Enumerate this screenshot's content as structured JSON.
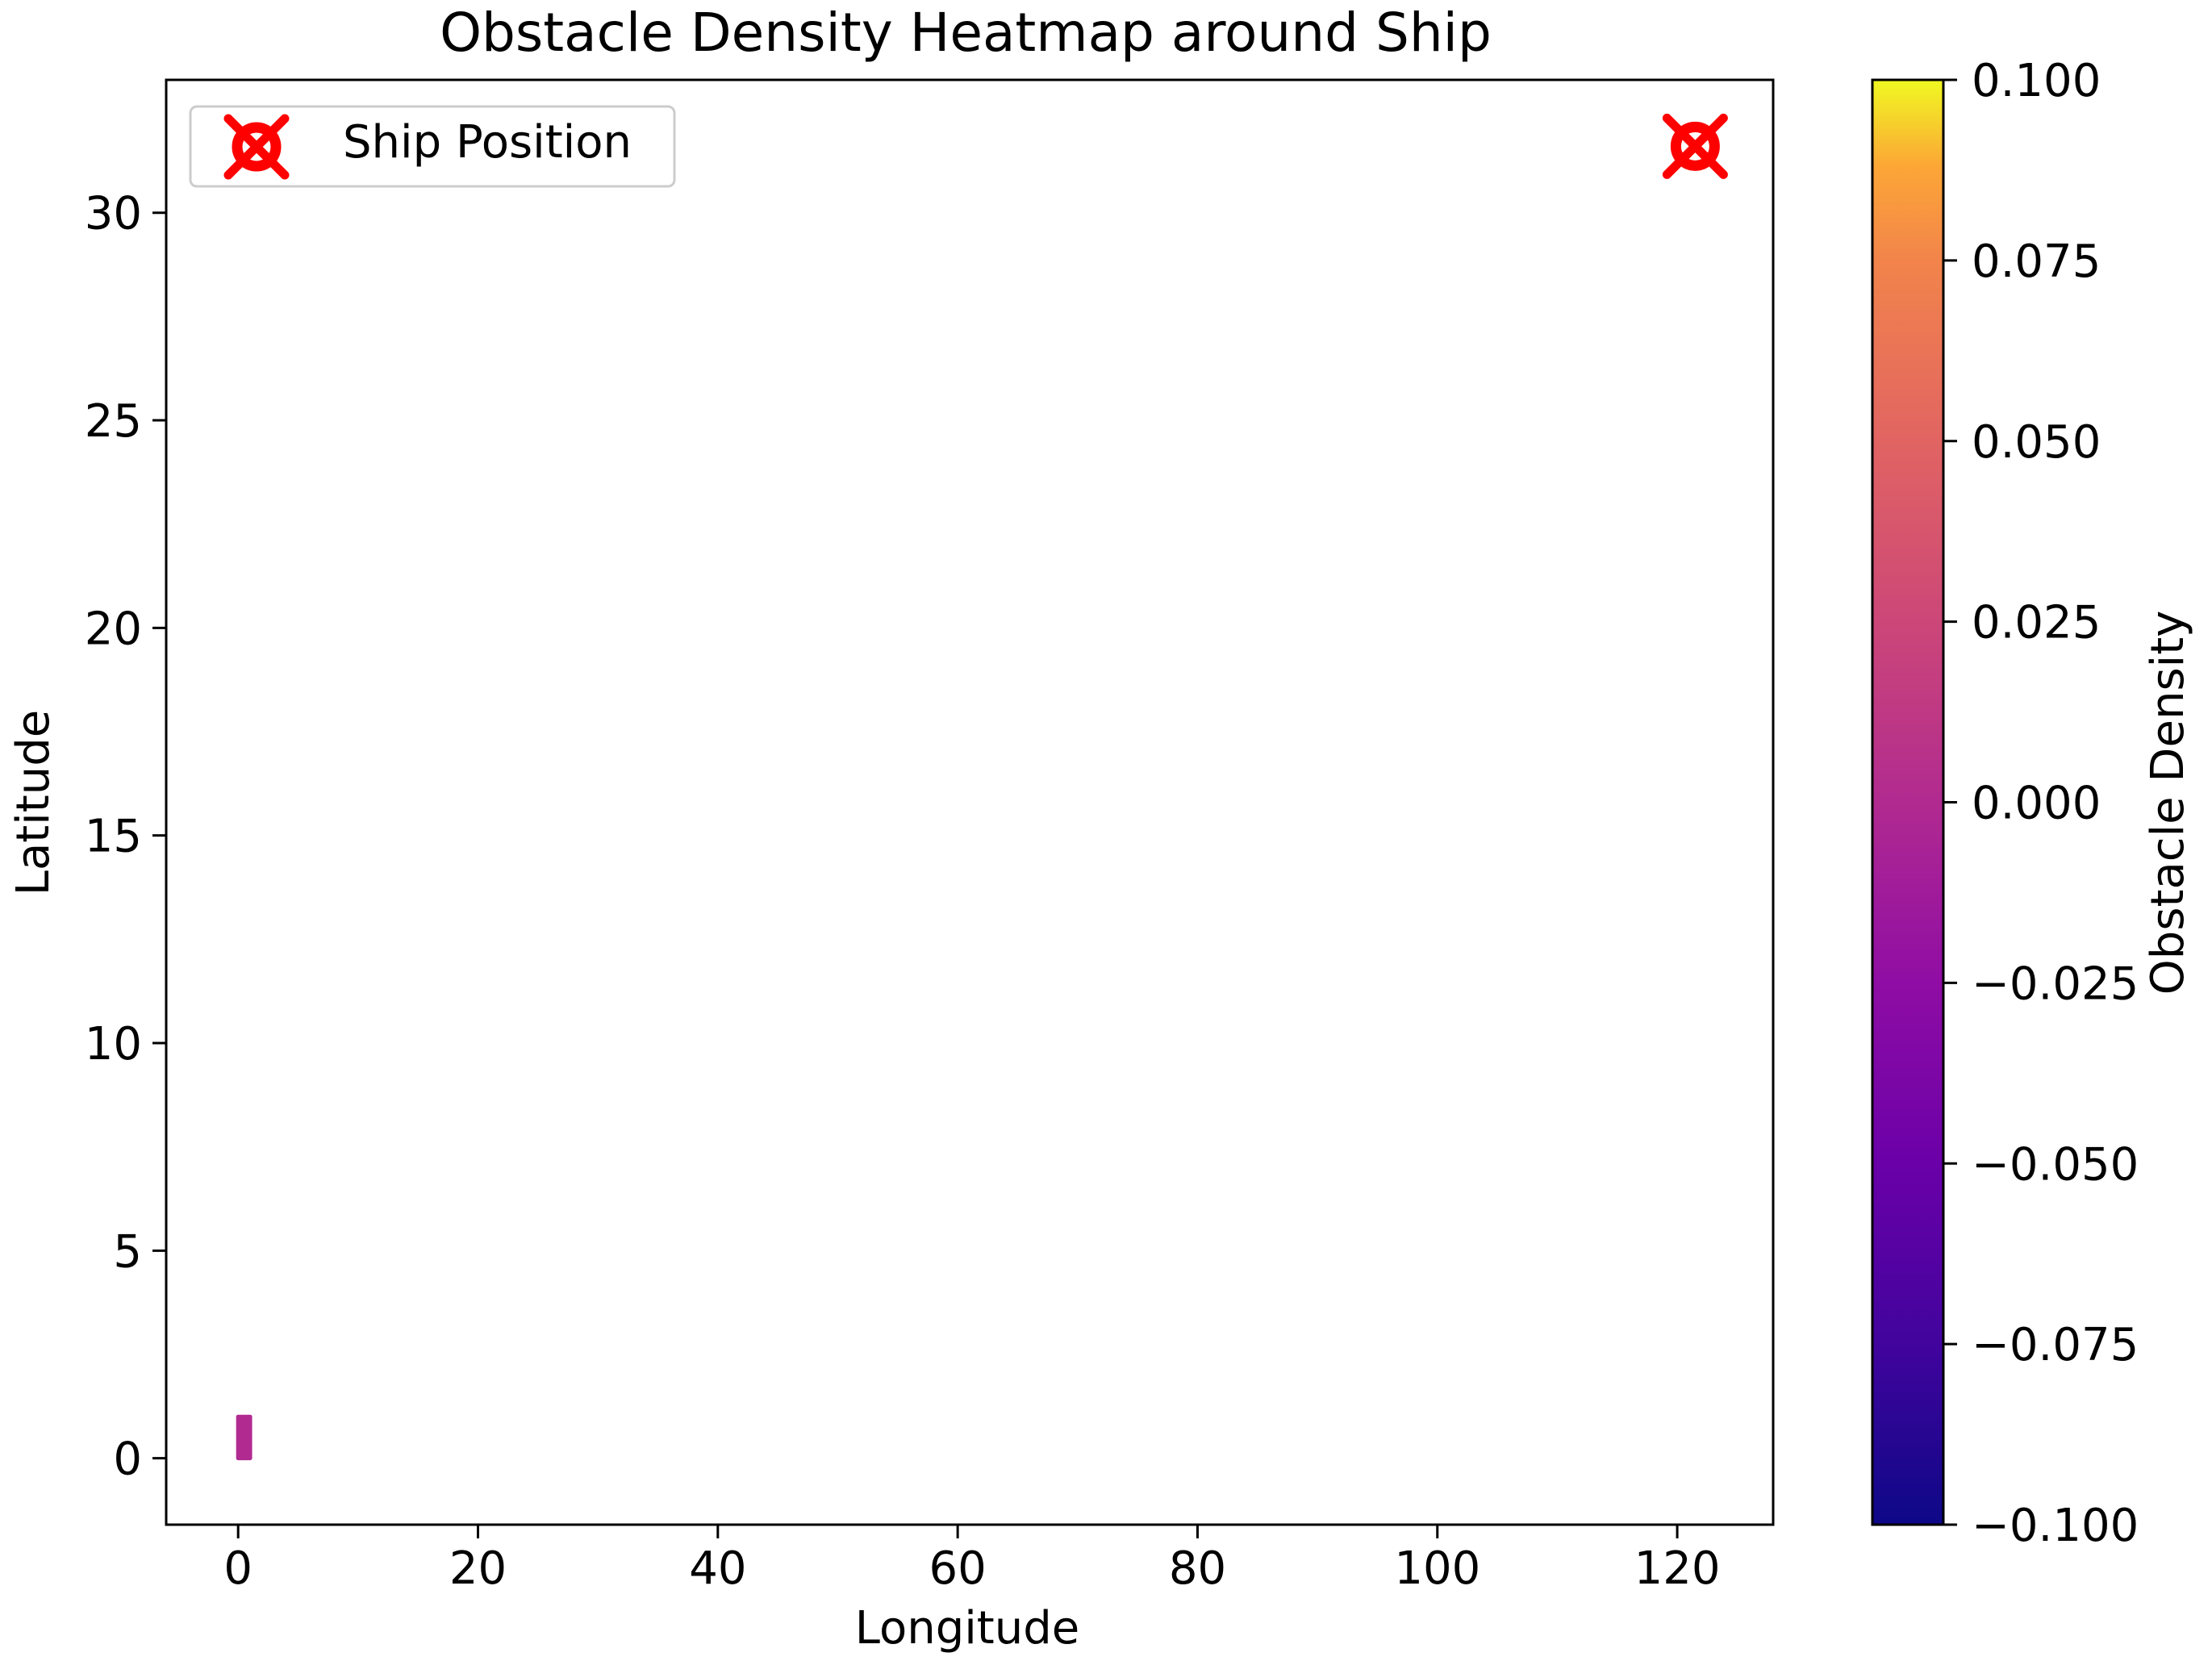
{
  "chart_data": {
    "type": "heatmap",
    "title": "Obstacle Density Heatmap around Ship",
    "xlabel": "Longitude",
    "ylabel": "Latitude",
    "xlim": [
      -6,
      128
    ],
    "ylim": [
      -1.6,
      33.2
    ],
    "x_ticks": [
      0,
      20,
      40,
      60,
      80,
      100,
      120
    ],
    "y_ticks": [
      0,
      5,
      10,
      15,
      20,
      25,
      30
    ],
    "grid": false,
    "legend_position": "top-left",
    "colorbar": {
      "label": "Obstacle Density",
      "colormap": "plasma",
      "range": [
        -0.1,
        0.1
      ],
      "ticks": [
        {
          "value": 0.1,
          "label": "0.100"
        },
        {
          "value": 0.075,
          "label": "0.075"
        },
        {
          "value": 0.05,
          "label": "0.050"
        },
        {
          "value": 0.025,
          "label": "0.025"
        },
        {
          "value": 0.0,
          "label": "0.000"
        },
        {
          "value": -0.025,
          "label": "−0.025"
        },
        {
          "value": -0.05,
          "label": "−0.050"
        },
        {
          "value": -0.075,
          "label": "−0.075"
        },
        {
          "value": -0.1,
          "label": "−0.100"
        }
      ]
    },
    "cells": [
      {
        "x0": 0,
        "x1": 1,
        "y0": 0,
        "y1": 1,
        "value": 0.0
      }
    ],
    "series": [
      {
        "name": "Ship Position",
        "marker": "circle-cross",
        "color": "#ff0000",
        "points": [
          {
            "x": 121.5,
            "y": 31.6
          }
        ]
      }
    ]
  }
}
